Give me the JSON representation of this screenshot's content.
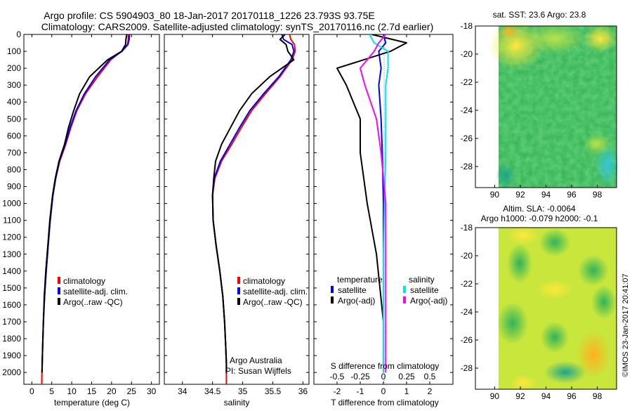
{
  "header": {
    "title_line1": "Argo profile: CS 5904903_80 18-Jan-2017 20170118_1226 23.793S 93.75E",
    "title_line2": "Climatology: CARS2009. Satellite-adjusted climatology: synTS_20170116.nc (2.7d earlier)"
  },
  "footer": {
    "copyright": "©IMOS 23-Jan-2017 20:41:07"
  },
  "colors": {
    "climatology": "#ff0000",
    "satellite_adj": "#0000ff",
    "argo": "#000000",
    "sal_satellite": "#00e5ee",
    "sal_argo": "#ff00ff",
    "zero_line": "#1e90ff"
  },
  "chart_data": [
    {
      "id": "temperature",
      "type": "line",
      "xlabel": "temperature (deg C)",
      "xlim": [
        -2,
        32
      ],
      "xticks": [
        0,
        5,
        10,
        15,
        20,
        25,
        30
      ],
      "xticklabels": [
        "0",
        "5",
        "10",
        "15",
        "20",
        "25",
        "30"
      ],
      "ylim": [
        0,
        2070
      ],
      "yticks": [
        0,
        100,
        200,
        300,
        400,
        500,
        600,
        700,
        800,
        900,
        1000,
        1100,
        1200,
        1300,
        1400,
        1500,
        1600,
        1700,
        1800,
        1900,
        2000
      ],
      "yticklabels": [
        "0",
        "100",
        "200",
        "300",
        "400",
        "500",
        "600",
        "700",
        "800",
        "900",
        "1000",
        "1100",
        "1200",
        "1300",
        "1400",
        "1500",
        "1600",
        "1700",
        "1800",
        "1900",
        "2000"
      ],
      "legend": {
        "position": "lower-center",
        "entries": [
          "climatology",
          "satellite-adj. clim.",
          "Argo(..raw -QC)"
        ]
      },
      "series": [
        {
          "name": "climatology",
          "color": "#ff0000",
          "x": [
            24.2,
            24.2,
            24.0,
            22.5,
            19.8,
            16.5,
            13.5,
            11.3,
            9.8,
            8.5,
            7.0,
            6.0,
            5.3,
            4.6,
            4.1,
            3.6,
            3.2,
            2.9,
            2.7,
            2.6,
            2.55,
            2.5
          ],
          "y": [
            0,
            30,
            60,
            100,
            150,
            250,
            350,
            450,
            550,
            650,
            750,
            850,
            950,
            1100,
            1250,
            1400,
            1550,
            1700,
            1850,
            1950,
            2000,
            2070
          ]
        },
        {
          "name": "satellite-adj. clim.",
          "color": "#0000ff",
          "x": [
            24.5,
            24.4,
            24.1,
            22.6,
            19.5,
            16.0,
            13.2,
            11.1,
            9.6,
            8.4,
            6.9,
            6.0,
            5.3,
            4.6,
            4.1,
            3.6,
            3.2,
            2.9,
            2.7,
            2.6,
            2.55
          ],
          "y": [
            0,
            30,
            60,
            100,
            150,
            250,
            350,
            450,
            550,
            650,
            750,
            850,
            950,
            1100,
            1250,
            1400,
            1550,
            1700,
            1850,
            1950,
            2000
          ]
        },
        {
          "name": "Argo(..raw -QC)",
          "color": "#000000",
          "x": [
            23.8,
            23.6,
            23.5,
            22.5,
            19.0,
            14.5,
            12.0,
            10.5,
            9.2,
            8.2,
            6.8,
            5.9,
            5.2,
            4.5,
            4.0,
            3.5,
            3.1,
            2.9,
            2.7,
            2.6,
            2.55
          ],
          "y": [
            0,
            30,
            60,
            100,
            150,
            250,
            350,
            450,
            550,
            650,
            750,
            850,
            950,
            1100,
            1250,
            1400,
            1550,
            1700,
            1850,
            1950,
            2000
          ]
        }
      ]
    },
    {
      "id": "salinity",
      "type": "line",
      "xlabel": "salinity",
      "xlim": [
        33.7,
        36.1
      ],
      "xticks": [
        34,
        34.5,
        35,
        35.5,
        36
      ],
      "xticklabels": [
        "34",
        "34.5",
        "35",
        "35.5",
        "36"
      ],
      "ylim": [
        0,
        2070
      ],
      "legend": {
        "position": "lower-center",
        "entries": [
          "climatology",
          "satellite-adj. clim.",
          "Argo(..raw -QC)"
        ]
      },
      "annotations": [
        "Argo Australia",
        "PI: Susan Wijffels"
      ],
      "series": [
        {
          "name": "climatology",
          "color": "#ff0000",
          "x": [
            35.78,
            35.8,
            35.86,
            35.87,
            35.82,
            35.62,
            35.38,
            35.15,
            34.98,
            34.82,
            34.65,
            34.54,
            34.5,
            34.51,
            34.56,
            34.62,
            34.67,
            34.7,
            34.72,
            34.73,
            34.73,
            34.73
          ],
          "y": [
            0,
            30,
            60,
            100,
            150,
            250,
            350,
            450,
            550,
            650,
            750,
            850,
            950,
            1100,
            1250,
            1400,
            1550,
            1700,
            1850,
            1950,
            2000,
            2070
          ]
        },
        {
          "name": "satellite-adj. clim.",
          "color": "#0000ff",
          "x": [
            35.65,
            35.68,
            35.82,
            35.85,
            35.8,
            35.6,
            35.35,
            35.12,
            34.95,
            34.79,
            34.63,
            34.53,
            34.5,
            34.51,
            34.56,
            34.62,
            34.67,
            34.7,
            34.72,
            34.73,
            34.73
          ],
          "y": [
            0,
            30,
            60,
            100,
            150,
            250,
            350,
            450,
            550,
            650,
            750,
            850,
            950,
            1100,
            1250,
            1400,
            1550,
            1700,
            1850,
            1950,
            2000
          ]
        },
        {
          "name": "Argo(..raw -QC)",
          "color": "#000000",
          "x": [
            35.7,
            35.62,
            35.72,
            35.75,
            35.85,
            35.45,
            35.15,
            34.95,
            34.8,
            34.65,
            34.55,
            34.52,
            34.5,
            34.51,
            34.56,
            34.62,
            34.67,
            34.7,
            34.72,
            34.73,
            34.73
          ],
          "y": [
            0,
            30,
            60,
            100,
            150,
            250,
            350,
            450,
            550,
            650,
            750,
            850,
            950,
            1100,
            1250,
            1400,
            1550,
            1700,
            1850,
            1950,
            2000
          ]
        }
      ]
    },
    {
      "id": "difference",
      "type": "line",
      "xlabel": "T difference from climatology",
      "top_label": "S difference from climatology",
      "xlim": [
        -3,
        3
      ],
      "xticks": [
        -2,
        -1,
        0,
        1,
        2
      ],
      "xticklabels": [
        "-2",
        "-1",
        "0",
        "1",
        "2"
      ],
      "sticks": [
        -2,
        -1,
        0,
        1,
        2
      ],
      "sticklabels": [
        "-0.5",
        "-0.25",
        "0",
        "0.25",
        "0.5"
      ],
      "ylim": [
        0,
        2070
      ],
      "legend": {
        "position": "lower-center",
        "headers": [
          "temperature",
          "salinity"
        ],
        "entries": [
          "satellite",
          "Argo(-adj)",
          "satellite",
          "Argo(-adj)"
        ]
      },
      "series": [
        {
          "name": "temperature satellite",
          "color": "#0000ff",
          "x": [
            0.0,
            0.1,
            -0.2,
            -0.1,
            -0.2,
            -0.1,
            -0.05,
            0,
            0,
            0,
            0
          ],
          "y": [
            0,
            50,
            100,
            200,
            300,
            500,
            700,
            1000,
            1300,
            1700,
            2000
          ]
        },
        {
          "name": "temperature Argo(-adj)",
          "color": "#000000",
          "x": [
            -0.5,
            1.0,
            0.3,
            -2.0,
            -1.6,
            -1.0,
            -1.0,
            -0.7,
            -0.3,
            0.0,
            0.0
          ],
          "y": [
            0,
            50,
            100,
            200,
            300,
            500,
            700,
            1000,
            1300,
            1700,
            2000
          ]
        },
        {
          "name": "salinity satellite",
          "color": "#00e5ee",
          "x": [
            -0.6,
            -0.4,
            0.2,
            0.2,
            0.1,
            0.1,
            0.1,
            0.05,
            0,
            0,
            0
          ],
          "y": [
            0,
            50,
            100,
            200,
            300,
            500,
            700,
            1000,
            1300,
            1700,
            2000
          ]
        },
        {
          "name": "salinity Argo(-adj)",
          "color": "#ff00ff",
          "x": [
            0.1,
            -0.2,
            -0.4,
            -1.0,
            -0.8,
            -0.3,
            -0.1,
            0.1,
            0.1,
            0.1,
            0.1
          ],
          "y": [
            0,
            50,
            100,
            200,
            300,
            500,
            700,
            1000,
            1300,
            1700,
            2000
          ]
        }
      ]
    },
    {
      "id": "sst-map",
      "type": "heatmap",
      "title": "sat. SST: 23.6  Argo: 23.8",
      "xlim": [
        88.5,
        99.5
      ],
      "ylim": [
        -29.5,
        -18
      ],
      "xticks": [
        90,
        92,
        94,
        96,
        98
      ],
      "xticklabels": [
        "90",
        "92",
        "94",
        "96",
        "98"
      ],
      "yticks": [
        -18,
        -20,
        -22,
        -24,
        -26,
        -28
      ],
      "yticklabels": [
        "-18",
        "-20",
        "-22",
        "-24",
        "-26",
        "-28"
      ]
    },
    {
      "id": "sla-map",
      "type": "heatmap",
      "title_line1": "Altim. SLA: -0.0064",
      "title_line2": "Argo h1000: -0.079 h2000: -0.1",
      "xlim": [
        88.5,
        99.5
      ],
      "ylim": [
        -29.5,
        -18
      ],
      "xticks": [
        90,
        92,
        94,
        96,
        98
      ],
      "xticklabels": [
        "90",
        "92",
        "94",
        "96",
        "98"
      ],
      "yticks": [
        -18,
        -20,
        -22,
        -24,
        -26,
        -28
      ],
      "yticklabels": [
        "-18",
        "-20",
        "-22",
        "-24",
        "-26",
        "-28"
      ]
    }
  ]
}
